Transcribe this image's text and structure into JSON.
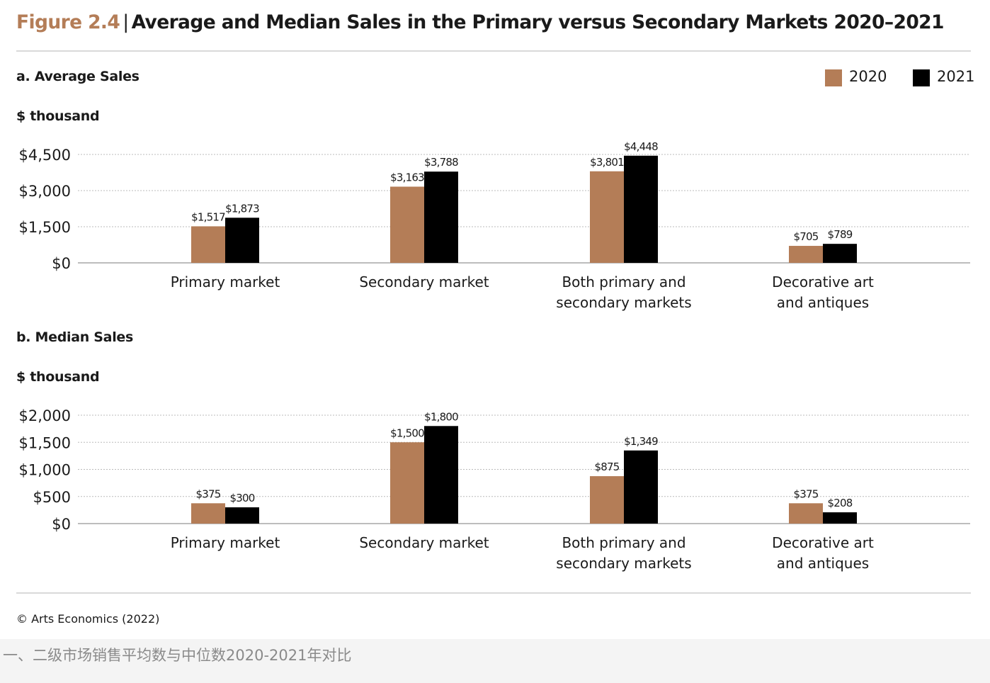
{
  "figure": {
    "label": "Figure 2.4",
    "separator": "|",
    "title": "Average and Median Sales in the Primary versus Secondary Markets 2020–2021"
  },
  "legend": {
    "items": [
      {
        "label": "2020",
        "color": "#b47d57"
      },
      {
        "label": "2021",
        "color": "#000000"
      }
    ]
  },
  "colors": {
    "accent": "#b47d57",
    "dark": "#000000",
    "grid": "#bbbbbb",
    "axis": "#bdbdbd"
  },
  "chart_data": [
    {
      "type": "bar",
      "title": "a. Average Sales",
      "ylabel": "$ thousand",
      "xlabel": "",
      "categories": [
        [
          "Primary market"
        ],
        [
          "Secondary market"
        ],
        [
          "Both primary and",
          "secondary markets"
        ],
        [
          "Decorative art",
          "and antiques"
        ]
      ],
      "series": [
        {
          "name": "2020",
          "values": [
            1517,
            3163,
            3801,
            705
          ],
          "labels": [
            "$1,517",
            "$3,163",
            "$3,801",
            "$705"
          ]
        },
        {
          "name": "2021",
          "values": [
            1873,
            3788,
            4448,
            789
          ],
          "labels": [
            "$1,873",
            "$3,788",
            "$4,448",
            "$789"
          ]
        }
      ],
      "ylim": [
        0,
        4500
      ],
      "yticks": [
        0,
        1500,
        3000,
        4500
      ],
      "ytick_labels": [
        "$0",
        "$1,500",
        "$3,000",
        "$4,500"
      ],
      "grid": true,
      "legend": "top-right"
    },
    {
      "type": "bar",
      "title": "b. Median Sales",
      "ylabel": "$ thousand",
      "xlabel": "",
      "categories": [
        [
          "Primary market"
        ],
        [
          "Secondary market"
        ],
        [
          "Both primary and",
          "secondary markets"
        ],
        [
          "Decorative art",
          "and antiques"
        ]
      ],
      "series": [
        {
          "name": "2020",
          "values": [
            375,
            1500,
            875,
            375
          ],
          "labels": [
            "$375",
            "$1,500",
            "$875",
            "$375"
          ]
        },
        {
          "name": "2021",
          "values": [
            300,
            1800,
            1349,
            208
          ],
          "labels": [
            "$300",
            "$1,800",
            "$1,349",
            "$208"
          ]
        }
      ],
      "ylim": [
        0,
        2000
      ],
      "yticks": [
        0,
        500,
        1000,
        1500,
        2000
      ],
      "ytick_labels": [
        "$0",
        "$500",
        "$1,000",
        "$1,500",
        "$2,000"
      ],
      "grid": true,
      "legend": "none"
    }
  ],
  "source": "© Arts Economics (2022)",
  "caption": "一、二级市场销售平均数与中位数2020-2021年对比"
}
